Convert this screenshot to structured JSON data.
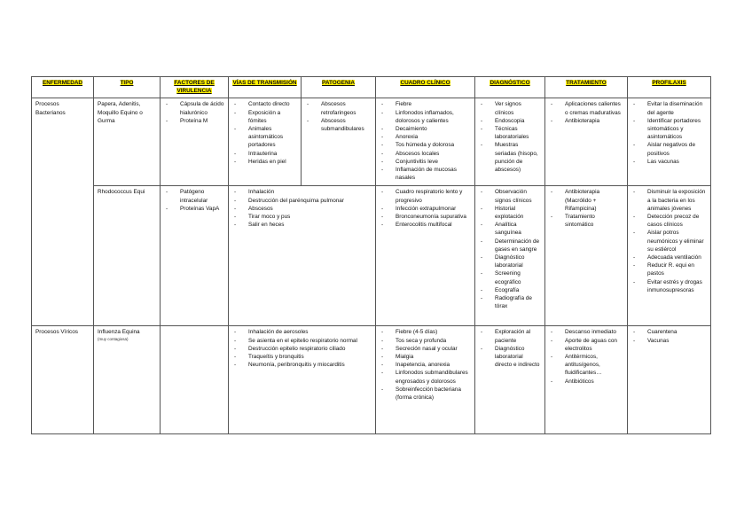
{
  "headers": [
    "ENFERMEDAD",
    "TIPO",
    "FACTORES DE VIRULENCIA",
    "VÍAS DE TRANSMISIÓN",
    "PATOGENIA",
    "CUADRO CLÍNICO",
    "DIAGNÓSTICO",
    "TRATAMIENTO",
    "PROFILAXIS"
  ],
  "groups": [
    {
      "enfermedad": "Procesos Bacterianos"
    },
    {
      "enfermedad": "Procesos Víricos"
    }
  ],
  "rows": [
    {
      "tipo": "Papera, Adenitis, Moquillo Equino o Gurma",
      "factores": [
        "Cápsula de ácido hialurónico",
        "Proteína M"
      ],
      "vias": [
        "Contacto directo",
        "Exposición a fómites",
        "Animales asintomáticos portadores",
        "Intrauterina",
        "Heridas en piel"
      ],
      "patogenia": [
        "Abscesos retrofaringeos",
        "Abscesos submandibulares"
      ],
      "cuadro": [
        "Fiebre",
        "Linfonodos inflamados, dolorosos y calientes",
        "Decaimiento",
        "Anorexia",
        "Tos húmeda y dolorosa",
        "Abscesos locales",
        "Conjuntivitis leve",
        "Inflamación de mucosas nasales"
      ],
      "diagnostico": [
        "Ver signos clínicos",
        "Endoscopia",
        "Técnicas laboratoriales",
        "Muestras seriadas (hisopo, punción de abscesos)"
      ],
      "tratamiento": [
        "Aplicaciones calientes o cremas madurativas",
        "Antibioterapia"
      ],
      "profilaxis": [
        "Evitar la diseminación del agente",
        "Identificar portadores sintomáticos y asintomáticos",
        "Aislar negativos de positivos",
        "Las vacunas"
      ]
    },
    {
      "tipo": "Rhodococcus Equi",
      "factores": [
        "Patógeno intracelular",
        "Proteínas VapA"
      ],
      "vias_patogenia": [
        "Inhalación",
        "Destrucción del parénquima pulmonar",
        "Abscesos",
        "Tirar moco y pus",
        "Salir en heces"
      ],
      "cuadro": [
        "Cuadro respiratorio lento y progresivo",
        "Infección extrapulmonar",
        "Bronconeumonía supurativa",
        "Enterocolitis multifocal"
      ],
      "diagnostico": [
        "Observación signos clínicos",
        "Historial explotación",
        "Analítica sanguínea",
        "Determinación de gases en sangre",
        "Diagnóstico laboratorial",
        "Screening ecográfico",
        "Ecografía",
        "Radiografía de tórax"
      ],
      "tratamiento": [
        "Antibioterapia (Macrólido + Rifampicina)",
        "Tratamiento sintomático"
      ],
      "profilaxis": [
        "Disminuir la exposición a la bacteria en los animales jóvenes",
        "Detección precoz de casos clínicos",
        "Aislar potros neumónicos y eliminar su estiércol",
        "Adecuada ventilación",
        "Reducir R. equi en pastos",
        "Evitar estrés y drogas inmunosupresoras"
      ]
    },
    {
      "tipo": "Influenza Equina",
      "tipo_note": "(muy contagiosa)",
      "vias_patogenia": [
        "Inhalación de aerosoles",
        "Se asienta en el epitelio respiratorio normal",
        "Destrucción epitelio respiratorio ciliado",
        "Traqueítis y bronquitis",
        "Neumonía, peribronquitis y miocarditis"
      ],
      "cuadro": [
        "Fiebre (4-5 días)",
        "Tos seca y profunda",
        "Secreción nasal y ocular",
        "Mialgia",
        "Inapetencia, anorexia",
        "Linfonodos submandibulares engrosados y dolorosos",
        "Sobreinfección bacteriana (forma crónica)"
      ],
      "diagnostico": [
        "Exploración al paciente",
        "Diagnóstico laboratorial directo e indirecto"
      ],
      "tratamiento": [
        "Descanso inmediato",
        "Aporte de aguas con electrolitos",
        "Antitérmicos, antitusígenos, fluidificantes…",
        "Antibióticos"
      ],
      "profilaxis": [
        "Cuarentena",
        "Vacunas"
      ]
    }
  ]
}
